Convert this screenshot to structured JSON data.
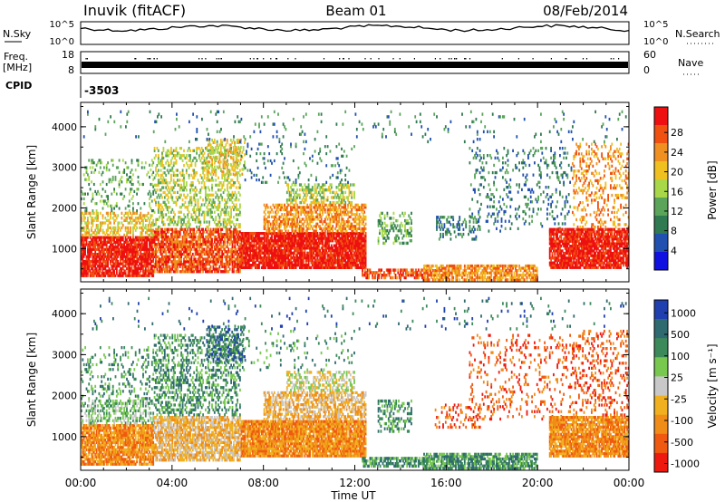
{
  "header": {
    "station": "Inuvik (fitACF)",
    "beam": "Beam 01",
    "date": "08/Feb/2014"
  },
  "nsky_panel": {
    "left_label": "N.Sky",
    "right_label": "N.Search",
    "left_ticks": [
      "10^5",
      "10^0"
    ],
    "right_ticks": [
      "10^5",
      "10^0"
    ]
  },
  "freq_panel": {
    "left_label_1": "Freq.",
    "left_label_2": "[MHz]",
    "right_label": "Nave",
    "left_ticks": [
      "18",
      "8"
    ],
    "right_ticks": [
      "60",
      "0"
    ]
  },
  "cpid": {
    "label": "CPID",
    "value": "-3503"
  },
  "chart_data": [
    {
      "type": "heatmap",
      "quantity": "power",
      "xlabel": "Time UT",
      "ylabel": "Slant Range [km]",
      "x_ticks": [
        "00:00",
        "04:00",
        "08:00",
        "12:00",
        "16:00",
        "20:00",
        "00:00"
      ],
      "x_range_hours": [
        0,
        24
      ],
      "y_ticks": [
        1000,
        2000,
        3000,
        4000
      ],
      "y_range_km": [
        180,
        4600
      ],
      "colorbar_label": "Power [dB]",
      "colorbar_ticks": [
        "4",
        "8",
        "12",
        "16",
        "20",
        "24",
        "28"
      ],
      "colorbar_range": [
        0,
        30
      ],
      "colorscale": [
        "#1010e0",
        "#2050b0",
        "#2f7a50",
        "#5aa55a",
        "#a8d848",
        "#f0c020",
        "#f09020",
        "#f05010",
        "#ee1010"
      ]
    },
    {
      "type": "heatmap",
      "quantity": "velocity",
      "xlabel": "Time UT",
      "ylabel": "Slant Range [km]",
      "x_ticks": [
        "00:00",
        "04:00",
        "08:00",
        "12:00",
        "16:00",
        "20:00",
        "00:00"
      ],
      "x_range_hours": [
        0,
        24
      ],
      "y_ticks": [
        1000,
        2000,
        3000,
        4000
      ],
      "y_range_km": [
        180,
        4600
      ],
      "colorbar_label": "Velocity [m s⁻¹]",
      "colorbar_ticks": [
        "1000",
        "500",
        "100",
        "25",
        "-25",
        "-100",
        "-500",
        "-1000"
      ],
      "colorscale": [
        "#2040b0",
        "#2f6a70",
        "#3c8a5a",
        "#78c850",
        "#c8c8c8",
        "#f0b020",
        "#f08c18",
        "#f05a10",
        "#ee1a10"
      ]
    }
  ],
  "footer": {
    "time_label": "Time UT"
  }
}
